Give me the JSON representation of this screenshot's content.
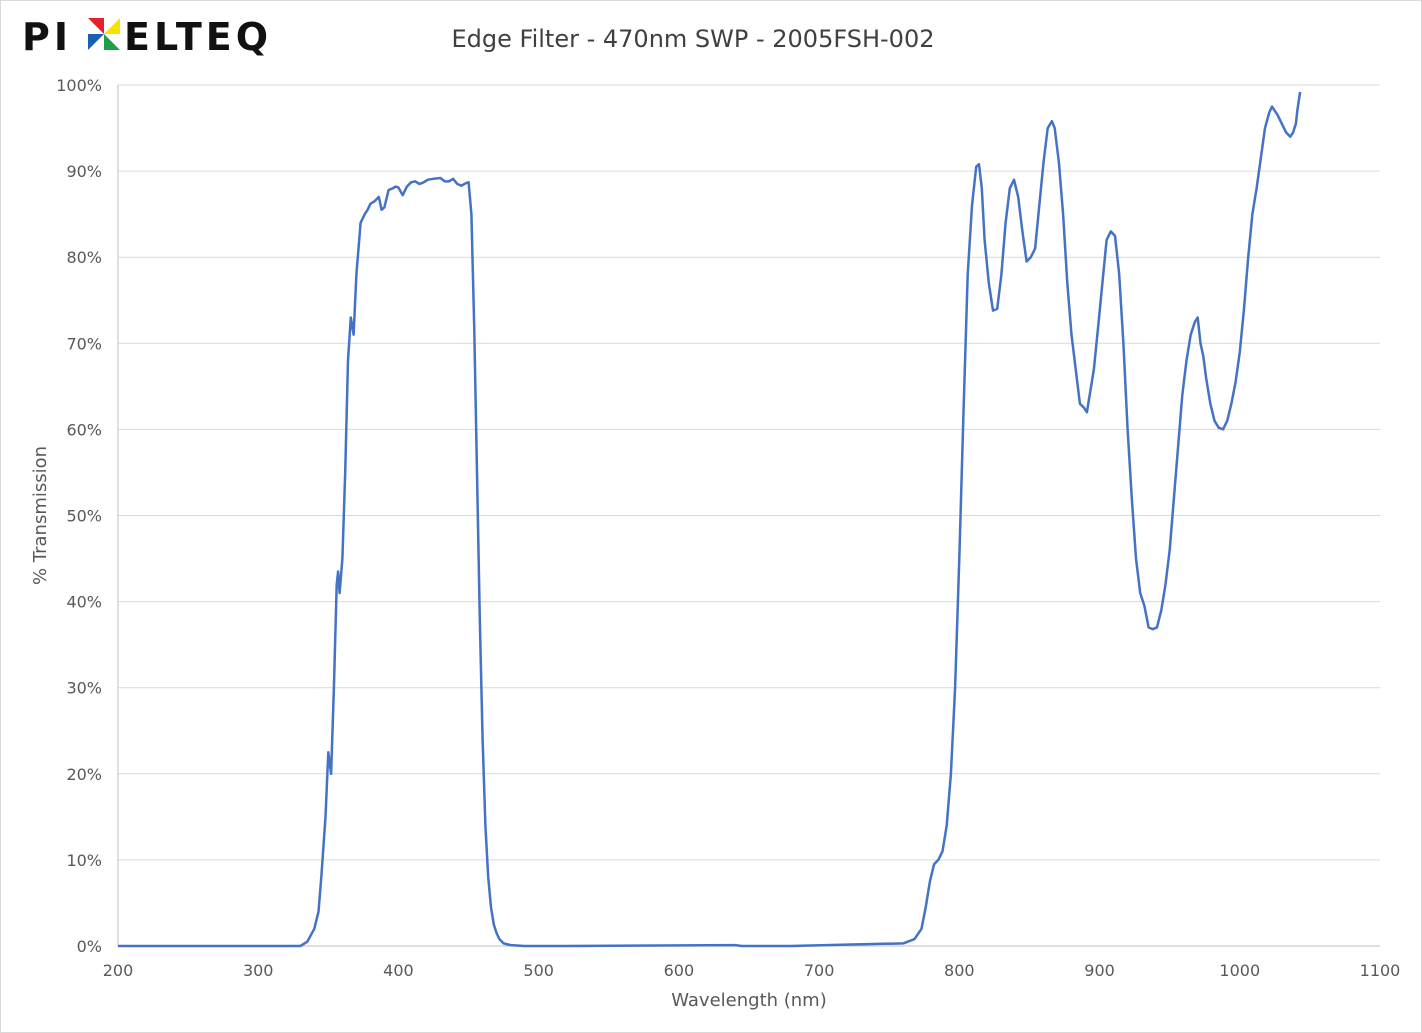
{
  "logo": {
    "text_before": "PI",
    "text_after": "ELTEQ",
    "colors": [
      "#e8202a",
      "#f5e400",
      "#1e9d4a",
      "#1b5fb5"
    ]
  },
  "chart_data": {
    "type": "line",
    "title": "Edge Filter - 470nm SWP - 2005FSH-002",
    "xlabel": "Wavelength (nm)",
    "ylabel": "% Transmission",
    "xlim": [
      200,
      1100
    ],
    "ylim": [
      0,
      100
    ],
    "x_ticks": [
      200,
      300,
      400,
      500,
      600,
      700,
      800,
      900,
      1000,
      1100
    ],
    "y_ticks": [
      "0%",
      "10%",
      "20%",
      "30%",
      "40%",
      "50%",
      "60%",
      "70%",
      "80%",
      "90%",
      "100%"
    ],
    "grid": "horizontal",
    "legend": "none",
    "series": [
      {
        "color": "#4472c4",
        "points": [
          [
            200,
            0
          ],
          [
            300,
            0
          ],
          [
            330,
            0
          ],
          [
            335,
            0.5
          ],
          [
            340,
            2
          ],
          [
            343,
            4
          ],
          [
            345,
            8
          ],
          [
            348,
            15
          ],
          [
            350,
            22.5
          ],
          [
            352,
            20
          ],
          [
            354,
            30
          ],
          [
            356,
            42
          ],
          [
            357,
            43.5
          ],
          [
            358,
            41
          ],
          [
            360,
            45
          ],
          [
            362,
            55
          ],
          [
            364,
            68
          ],
          [
            366,
            73
          ],
          [
            368,
            71
          ],
          [
            370,
            78
          ],
          [
            373,
            84
          ],
          [
            376,
            85
          ],
          [
            378,
            85.5
          ],
          [
            380,
            86.2
          ],
          [
            383,
            86.5
          ],
          [
            386,
            87
          ],
          [
            388,
            85.5
          ],
          [
            390,
            85.8
          ],
          [
            393,
            87.8
          ],
          [
            396,
            88
          ],
          [
            398,
            88.2
          ],
          [
            400,
            88.1
          ],
          [
            403,
            87.2
          ],
          [
            406,
            88.2
          ],
          [
            409,
            88.7
          ],
          [
            412,
            88.8
          ],
          [
            415,
            88.5
          ],
          [
            418,
            88.7
          ],
          [
            421,
            89
          ],
          [
            425,
            89.1
          ],
          [
            430,
            89.2
          ],
          [
            433,
            88.8
          ],
          [
            436,
            88.8
          ],
          [
            439,
            89.1
          ],
          [
            442,
            88.5
          ],
          [
            445,
            88.3
          ],
          [
            448,
            88.6
          ],
          [
            450,
            88.7
          ],
          [
            452,
            85
          ],
          [
            454,
            72
          ],
          [
            456,
            55
          ],
          [
            458,
            38
          ],
          [
            460,
            24
          ],
          [
            462,
            14
          ],
          [
            464,
            8
          ],
          [
            466,
            4.5
          ],
          [
            468,
            2.5
          ],
          [
            470,
            1.5
          ],
          [
            472,
            0.8
          ],
          [
            475,
            0.3
          ],
          [
            480,
            0.1
          ],
          [
            490,
            0
          ],
          [
            520,
            0
          ],
          [
            640,
            0.1
          ],
          [
            645,
            0
          ],
          [
            680,
            0
          ],
          [
            730,
            0.2
          ],
          [
            760,
            0.3
          ],
          [
            768,
            0.8
          ],
          [
            773,
            2
          ],
          [
            776,
            4.5
          ],
          [
            779,
            7.5
          ],
          [
            782,
            9.5
          ],
          [
            785,
            10
          ],
          [
            788,
            11
          ],
          [
            791,
            14
          ],
          [
            794,
            20
          ],
          [
            797,
            30
          ],
          [
            800,
            45
          ],
          [
            803,
            62
          ],
          [
            806,
            78
          ],
          [
            809,
            86
          ],
          [
            812,
            90.5
          ],
          [
            814,
            90.8
          ],
          [
            816,
            88
          ],
          [
            818,
            82
          ],
          [
            821,
            77
          ],
          [
            824,
            73.8
          ],
          [
            827,
            74
          ],
          [
            830,
            78
          ],
          [
            833,
            84
          ],
          [
            836,
            88
          ],
          [
            839,
            89
          ],
          [
            842,
            87
          ],
          [
            845,
            83
          ],
          [
            848,
            79.5
          ],
          [
            851,
            80
          ],
          [
            854,
            81
          ],
          [
            857,
            86
          ],
          [
            860,
            91
          ],
          [
            863,
            95
          ],
          [
            866,
            95.8
          ],
          [
            868,
            95
          ],
          [
            871,
            91
          ],
          [
            874,
            85
          ],
          [
            877,
            77
          ],
          [
            880,
            71
          ],
          [
            883,
            67
          ],
          [
            886,
            63
          ],
          [
            889,
            62.5
          ],
          [
            891,
            62
          ],
          [
            893,
            64
          ],
          [
            896,
            67
          ],
          [
            899,
            72
          ],
          [
            902,
            77
          ],
          [
            905,
            82
          ],
          [
            908,
            83
          ],
          [
            911,
            82.5
          ],
          [
            914,
            78
          ],
          [
            917,
            70
          ],
          [
            920,
            60
          ],
          [
            923,
            52
          ],
          [
            926,
            45
          ],
          [
            929,
            41
          ],
          [
            932,
            39.5
          ],
          [
            935,
            37
          ],
          [
            938,
            36.8
          ],
          [
            941,
            37
          ],
          [
            944,
            39
          ],
          [
            947,
            42
          ],
          [
            950,
            46
          ],
          [
            953,
            52
          ],
          [
            956,
            58
          ],
          [
            959,
            64
          ],
          [
            962,
            68
          ],
          [
            965,
            71
          ],
          [
            968,
            72.5
          ],
          [
            970,
            73
          ],
          [
            972,
            70
          ],
          [
            974,
            68.5
          ],
          [
            976,
            66
          ],
          [
            979,
            63
          ],
          [
            982,
            61
          ],
          [
            985,
            60.2
          ],
          [
            988,
            60
          ],
          [
            991,
            61
          ],
          [
            994,
            63
          ],
          [
            997,
            65.5
          ],
          [
            1000,
            69
          ],
          [
            1003,
            74
          ],
          [
            1006,
            80
          ],
          [
            1009,
            85
          ],
          [
            1012,
            88
          ],
          [
            1015,
            91.5
          ],
          [
            1018,
            95
          ],
          [
            1021,
            96.8
          ],
          [
            1023,
            97.5
          ],
          [
            1025,
            97
          ],
          [
            1027,
            96.5
          ],
          [
            1030,
            95.5
          ],
          [
            1033,
            94.5
          ],
          [
            1036,
            94
          ],
          [
            1038,
            94.5
          ],
          [
            1040,
            95.5
          ],
          [
            1041,
            97
          ],
          [
            1043,
            99.2
          ]
        ]
      }
    ]
  }
}
